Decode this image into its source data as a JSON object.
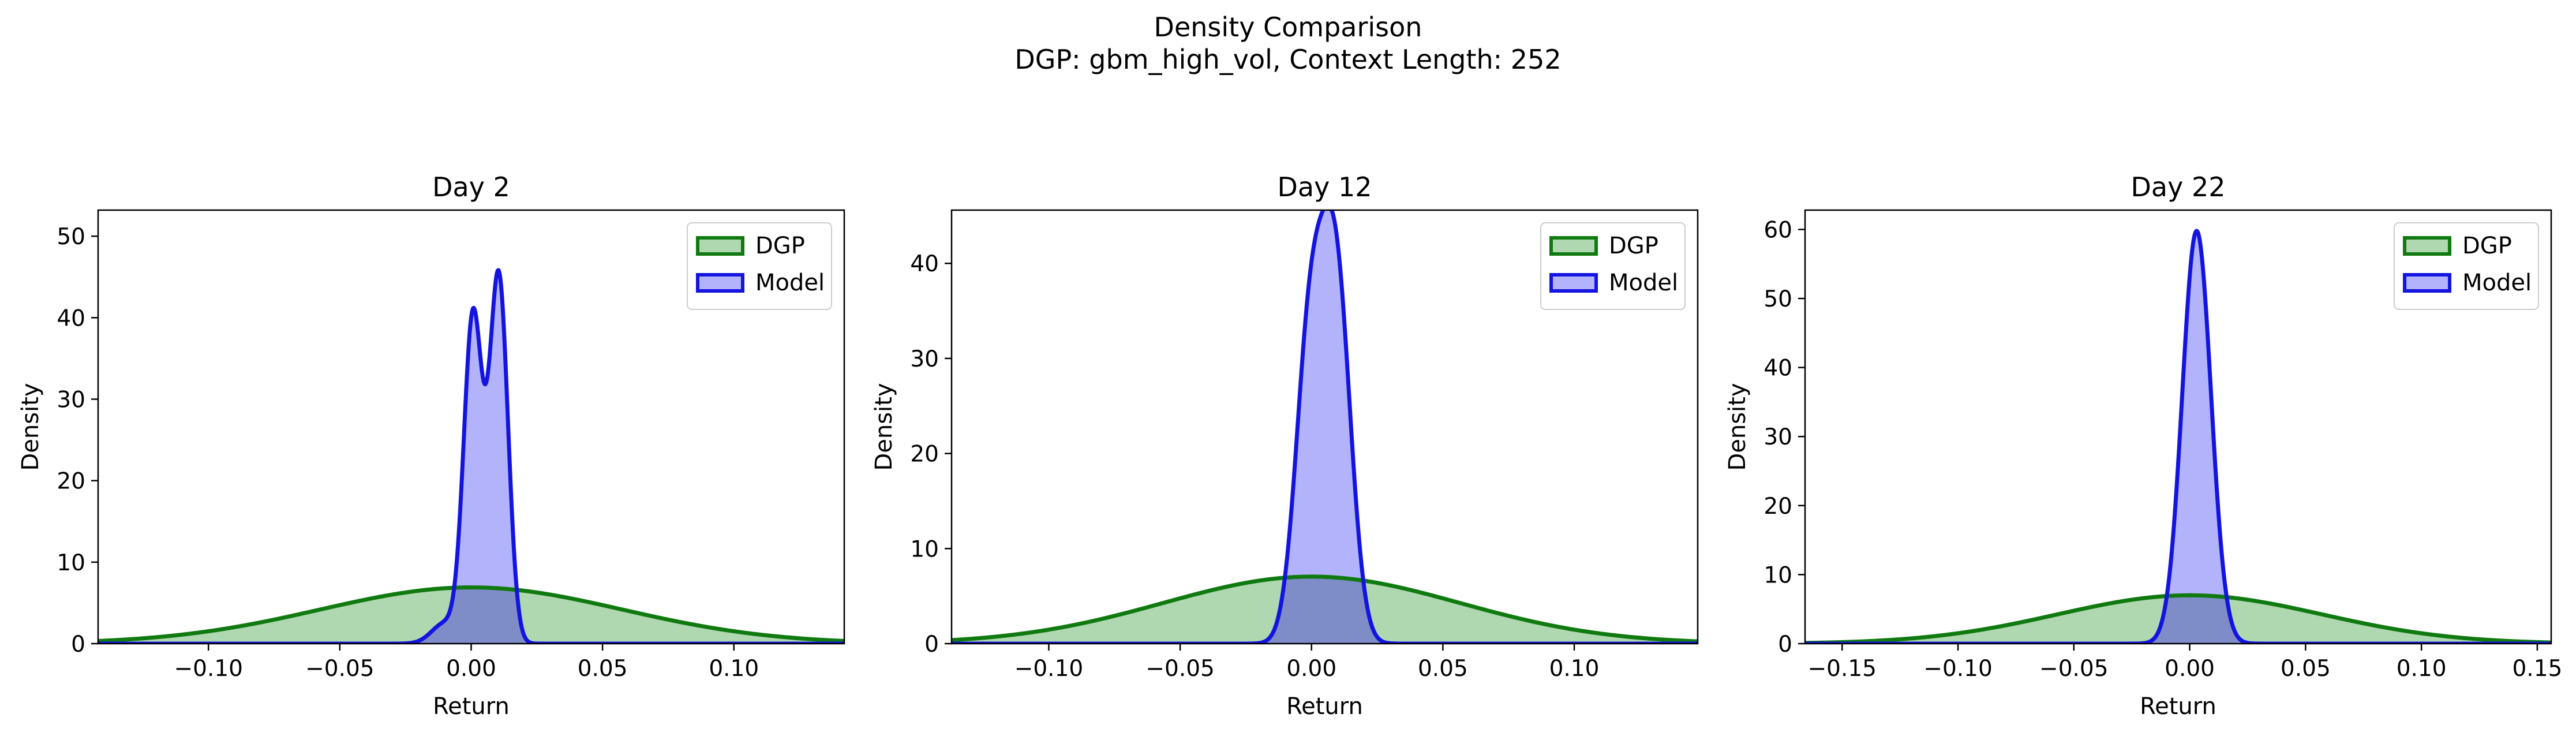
{
  "figure": {
    "title": "Density Comparison",
    "subtitle": "DGP: gbm_high_vol, Context Length: 252"
  },
  "colors": {
    "dgp_line": "#107a10",
    "dgp_fill": "#b0d8b0",
    "model_line": "#1414e0",
    "model_fill": "#b3b3fb",
    "overlap_fill": "#7e8cc8"
  },
  "chart_data": [
    {
      "type": "area",
      "title": "Day 2",
      "xlabel": "Return",
      "ylabel": "Density",
      "xlim": [
        -0.142,
        0.142
      ],
      "ylim": [
        0,
        53.2
      ],
      "xticks": [
        -0.1,
        -0.05,
        0.0,
        0.05,
        0.1
      ],
      "xtick_labels": [
        "−0.10",
        "−0.05",
        "0.00",
        "0.05",
        "0.10"
      ],
      "yticks": [
        0,
        10,
        20,
        30,
        40,
        50
      ],
      "ytick_labels": [
        "0",
        "10",
        "20",
        "30",
        "40",
        "50"
      ],
      "legend": {
        "position": "top-right",
        "entries": [
          "DGP",
          "Model"
        ]
      },
      "series": [
        {
          "name": "DGP",
          "kind": "normal",
          "mean": 0.0,
          "sd": 0.0575,
          "peak": 6.9
        },
        {
          "name": "Model",
          "kind": "mixture",
          "components": [
            {
              "mean": 0.0007,
              "sd": 0.0035,
              "peak": 40.0
            },
            {
              "mean": 0.0105,
              "sd": 0.0035,
              "peak": 45.0
            },
            {
              "mean": -0.01,
              "sd": 0.005,
              "peak": 2.5
            }
          ]
        }
      ]
    },
    {
      "type": "area",
      "title": "Day 12",
      "xlabel": "Return",
      "ylabel": "Density",
      "xlim": [
        -0.137,
        0.147
      ],
      "ylim": [
        0,
        45.6
      ],
      "xticks": [
        -0.1,
        -0.05,
        0.0,
        0.05,
        0.1
      ],
      "xtick_labels": [
        "−0.10",
        "−0.05",
        "0.00",
        "0.05",
        "0.10"
      ],
      "yticks": [
        0,
        10,
        20,
        30,
        40
      ],
      "ytick_labels": [
        "0",
        "10",
        "20",
        "30",
        "40"
      ],
      "legend": {
        "position": "top-right",
        "entries": [
          "DGP",
          "Model"
        ]
      },
      "series": [
        {
          "name": "DGP",
          "kind": "normal",
          "mean": 0.0,
          "sd": 0.0565,
          "peak": 7.05
        },
        {
          "name": "Model",
          "kind": "mixture",
          "components": [
            {
              "mean": -0.0005,
              "sd": 0.0055,
              "peak": 32.0
            },
            {
              "mean": 0.0095,
              "sd": 0.0055,
              "peak": 37.0
            }
          ]
        }
      ]
    },
    {
      "type": "area",
      "title": "Day 22",
      "xlabel": "Return",
      "ylabel": "Density",
      "xlim": [
        -0.166,
        0.156
      ],
      "ylim": [
        0,
        62.8
      ],
      "xticks": [
        -0.15,
        -0.1,
        -0.05,
        0.0,
        0.05,
        0.1,
        0.15
      ],
      "xtick_labels": [
        "−0.15",
        "−0.10",
        "−0.05",
        "0.00",
        "0.05",
        "0.10",
        "0.15"
      ],
      "yticks": [
        0,
        10,
        20,
        30,
        40,
        50,
        60
      ],
      "ytick_labels": [
        "0",
        "10",
        "20",
        "30",
        "40",
        "50",
        "60"
      ],
      "legend": {
        "position": "top-right",
        "entries": [
          "DGP",
          "Model"
        ]
      },
      "series": [
        {
          "name": "DGP",
          "kind": "normal",
          "mean": 0.0,
          "sd": 0.057,
          "peak": 7.0
        },
        {
          "name": "Model",
          "kind": "mixture",
          "components": [
            {
              "mean": 0.003,
              "sd": 0.0062,
              "peak": 59.8
            }
          ]
        }
      ]
    }
  ]
}
